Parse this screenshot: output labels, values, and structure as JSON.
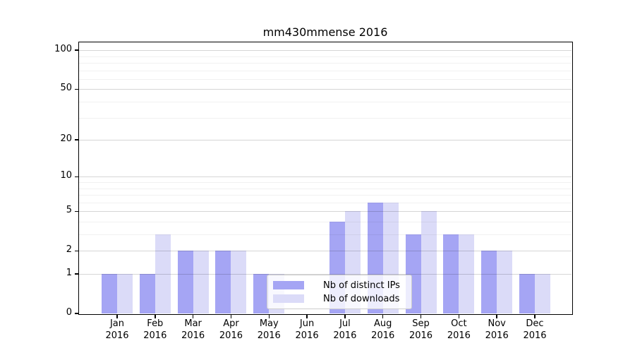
{
  "chart_data": {
    "type": "bar",
    "title": "mm430mmense 2016",
    "xlabel": "",
    "ylabel": "",
    "categories": [
      {
        "month": "Jan",
        "year": "2016"
      },
      {
        "month": "Feb",
        "year": "2016"
      },
      {
        "month": "Mar",
        "year": "2016"
      },
      {
        "month": "Apr",
        "year": "2016"
      },
      {
        "month": "May",
        "year": "2016"
      },
      {
        "month": "Jun",
        "year": "2016"
      },
      {
        "month": "Jul",
        "year": "2016"
      },
      {
        "month": "Aug",
        "year": "2016"
      },
      {
        "month": "Sep",
        "year": "2016"
      },
      {
        "month": "Oct",
        "year": "2016"
      },
      {
        "month": "Nov",
        "year": "2016"
      },
      {
        "month": "Dec",
        "year": "2016"
      }
    ],
    "series": [
      {
        "name": "Nb of distinct IPs",
        "color": "#a5a5f4",
        "values": [
          1,
          1,
          2,
          2,
          1,
          0,
          4,
          6,
          3,
          3,
          2,
          1
        ]
      },
      {
        "name": "Nb of downloads",
        "color": "#dbdbf8",
        "values": [
          1,
          3,
          2,
          2,
          1,
          0,
          5,
          6,
          5,
          3,
          2,
          1
        ]
      }
    ],
    "yscale": "log1p",
    "ylim": [
      0,
      115
    ],
    "y_ticks": [
      {
        "value": 0,
        "label": "0"
      },
      {
        "value": 1,
        "label": "1"
      },
      {
        "value": 2,
        "label": "2"
      },
      {
        "value": 5,
        "label": "5"
      },
      {
        "value": 10,
        "label": "10"
      },
      {
        "value": 20,
        "label": "20"
      },
      {
        "value": 50,
        "label": "50"
      },
      {
        "value": 100,
        "label": "100"
      }
    ],
    "minor_gridlines": [
      3,
      4,
      6,
      7,
      8,
      9,
      30,
      40,
      60,
      70,
      80,
      90
    ],
    "grid": true,
    "legend_position": "lower-center"
  },
  "colors": {
    "background": "#ffffff",
    "axis": "#000000",
    "grid_major": "#d9d9d9",
    "grid_minor": "#efefef",
    "bar_distinct_ips": "#a5a5f4",
    "bar_downloads": "#dbdbf8",
    "legend_border": "#cccccc"
  }
}
